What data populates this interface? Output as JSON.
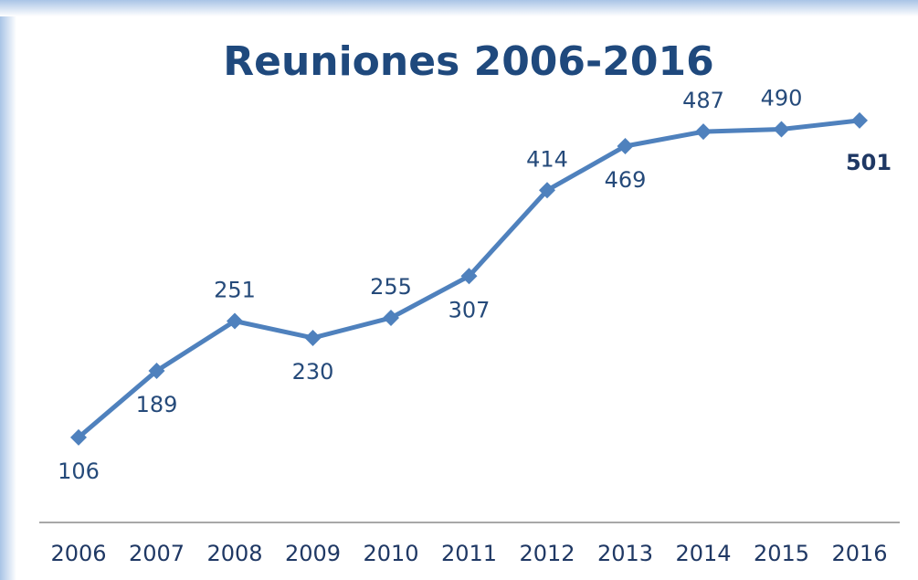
{
  "chart_data": {
    "type": "line",
    "title": "Reuniones 2006-2016",
    "categories": [
      "2006",
      "2007",
      "2008",
      "2009",
      "2010",
      "2011",
      "2012",
      "2013",
      "2014",
      "2015",
      "2016"
    ],
    "series": [
      {
        "name": null,
        "color": "#4f81bd",
        "values": [
          106,
          189,
          251,
          230,
          255,
          307,
          414,
          469,
          487,
          490,
          501
        ]
      }
    ]
  }
}
